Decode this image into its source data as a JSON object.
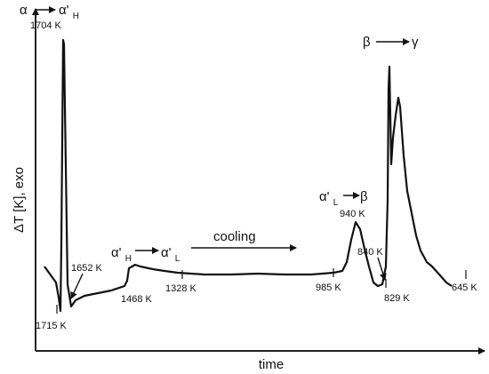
{
  "chart_data": {
    "type": "line",
    "xlabel": "time",
    "ylabel": "ΔT [K], exo",
    "series": [
      {
        "points": [
          [
            10,
            300
          ],
          [
            23,
            318
          ],
          [
            26,
            335
          ],
          [
            28,
            350
          ],
          [
            29,
            275
          ],
          [
            31,
            45
          ],
          [
            32,
            50
          ],
          [
            33,
            120
          ],
          [
            36,
            320
          ],
          [
            40,
            345
          ],
          [
            45,
            338
          ],
          [
            55,
            333
          ],
          [
            70,
            330
          ],
          [
            85,
            327
          ],
          [
            100,
            322
          ],
          [
            103,
            316
          ],
          [
            105,
            302
          ],
          [
            112,
            298
          ],
          [
            118,
            300
          ],
          [
            132,
            303
          ],
          [
            145,
            305
          ],
          [
            160,
            307
          ],
          [
            175,
            308
          ],
          [
            190,
            309
          ],
          [
            220,
            309
          ],
          [
            250,
            308
          ],
          [
            280,
            309
          ],
          [
            310,
            309
          ],
          [
            335,
            307
          ],
          [
            345,
            305
          ],
          [
            350,
            295
          ],
          [
            355,
            270
          ],
          [
            360,
            250
          ],
          [
            365,
            258
          ],
          [
            370,
            280
          ],
          [
            375,
            300
          ],
          [
            380,
            318
          ],
          [
            385,
            322
          ],
          [
            390,
            320
          ],
          [
            394,
            300
          ],
          [
            396,
            225
          ],
          [
            397,
            100
          ],
          [
            398,
            75
          ],
          [
            400,
            185
          ],
          [
            402,
            155
          ],
          [
            405,
            130
          ],
          [
            408,
            110
          ],
          [
            410,
            120
          ],
          [
            414,
            175
          ],
          [
            418,
            215
          ],
          [
            423,
            240
          ],
          [
            428,
            265
          ],
          [
            433,
            282
          ],
          [
            440,
            295
          ],
          [
            446,
            300
          ],
          [
            455,
            310
          ],
          [
            462,
            318
          ],
          [
            468,
            322
          ]
        ]
      }
    ],
    "annotations": {
      "t_1704": "1704 K",
      "t_1715": "1715 K",
      "t_1652": "1652 K",
      "t_1468": "1468 K",
      "t_1328": "1328 K",
      "t_985": "985 K",
      "t_940": "940 K",
      "t_840": "840 K",
      "t_829": "829 K",
      "t_645": "645 K",
      "cooling": "cooling",
      "trans1": {
        "from": "α",
        "to": "α'",
        "to_sub": "H"
      },
      "trans2": {
        "from": "α'",
        "from_sub": "H",
        "to": "α'",
        "to_sub": "L"
      },
      "trans3": {
        "from": "α'",
        "from_sub": "L",
        "to": "β"
      },
      "trans4": {
        "from": "β",
        "to": "γ"
      }
    },
    "colors": {
      "line": "#111111",
      "axis": "#222222"
    }
  }
}
